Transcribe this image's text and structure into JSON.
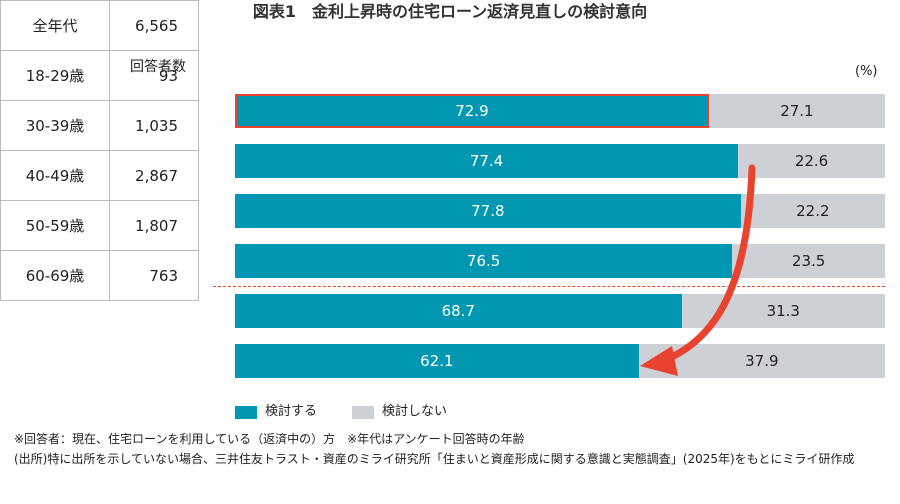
{
  "title": "図表1　金利上昇時の住宅ローン返済見直しの検討意向",
  "header_count": "回答者数",
  "unit": "(%)",
  "colors": {
    "yes": "#0097b2",
    "no": "#cdd0d4",
    "highlight": "#e8432e"
  },
  "chart_data": {
    "type": "bar",
    "stacked": true,
    "orientation": "horizontal",
    "xlim": [
      0,
      100
    ],
    "categories": [
      "全年代",
      "18-29歳",
      "30-39歳",
      "40-49歳",
      "50-59歳",
      "60-69歳"
    ],
    "counts": [
      "6,565",
      "93",
      "1,035",
      "2,867",
      "1,807",
      "763"
    ],
    "series": [
      {
        "name": "検討する",
        "values": [
          72.9,
          77.4,
          77.8,
          76.5,
          68.7,
          62.1
        ]
      },
      {
        "name": "検討しない",
        "values": [
          27.1,
          22.6,
          22.2,
          23.5,
          31.3,
          37.9
        ]
      }
    ],
    "legend": "bottom",
    "highlighted": "全年代"
  },
  "notes": [
    "※回答者：現在、住宅ローンを利用している（返済中の）方　※年代はアンケート回答時の年齢",
    "(出所)特に出所を示していない場合、三井住友トラスト・資産のミライ研究所「住まいと資産形成に関する意識と実態調査」(2025年)をもとにミライ研作成"
  ]
}
